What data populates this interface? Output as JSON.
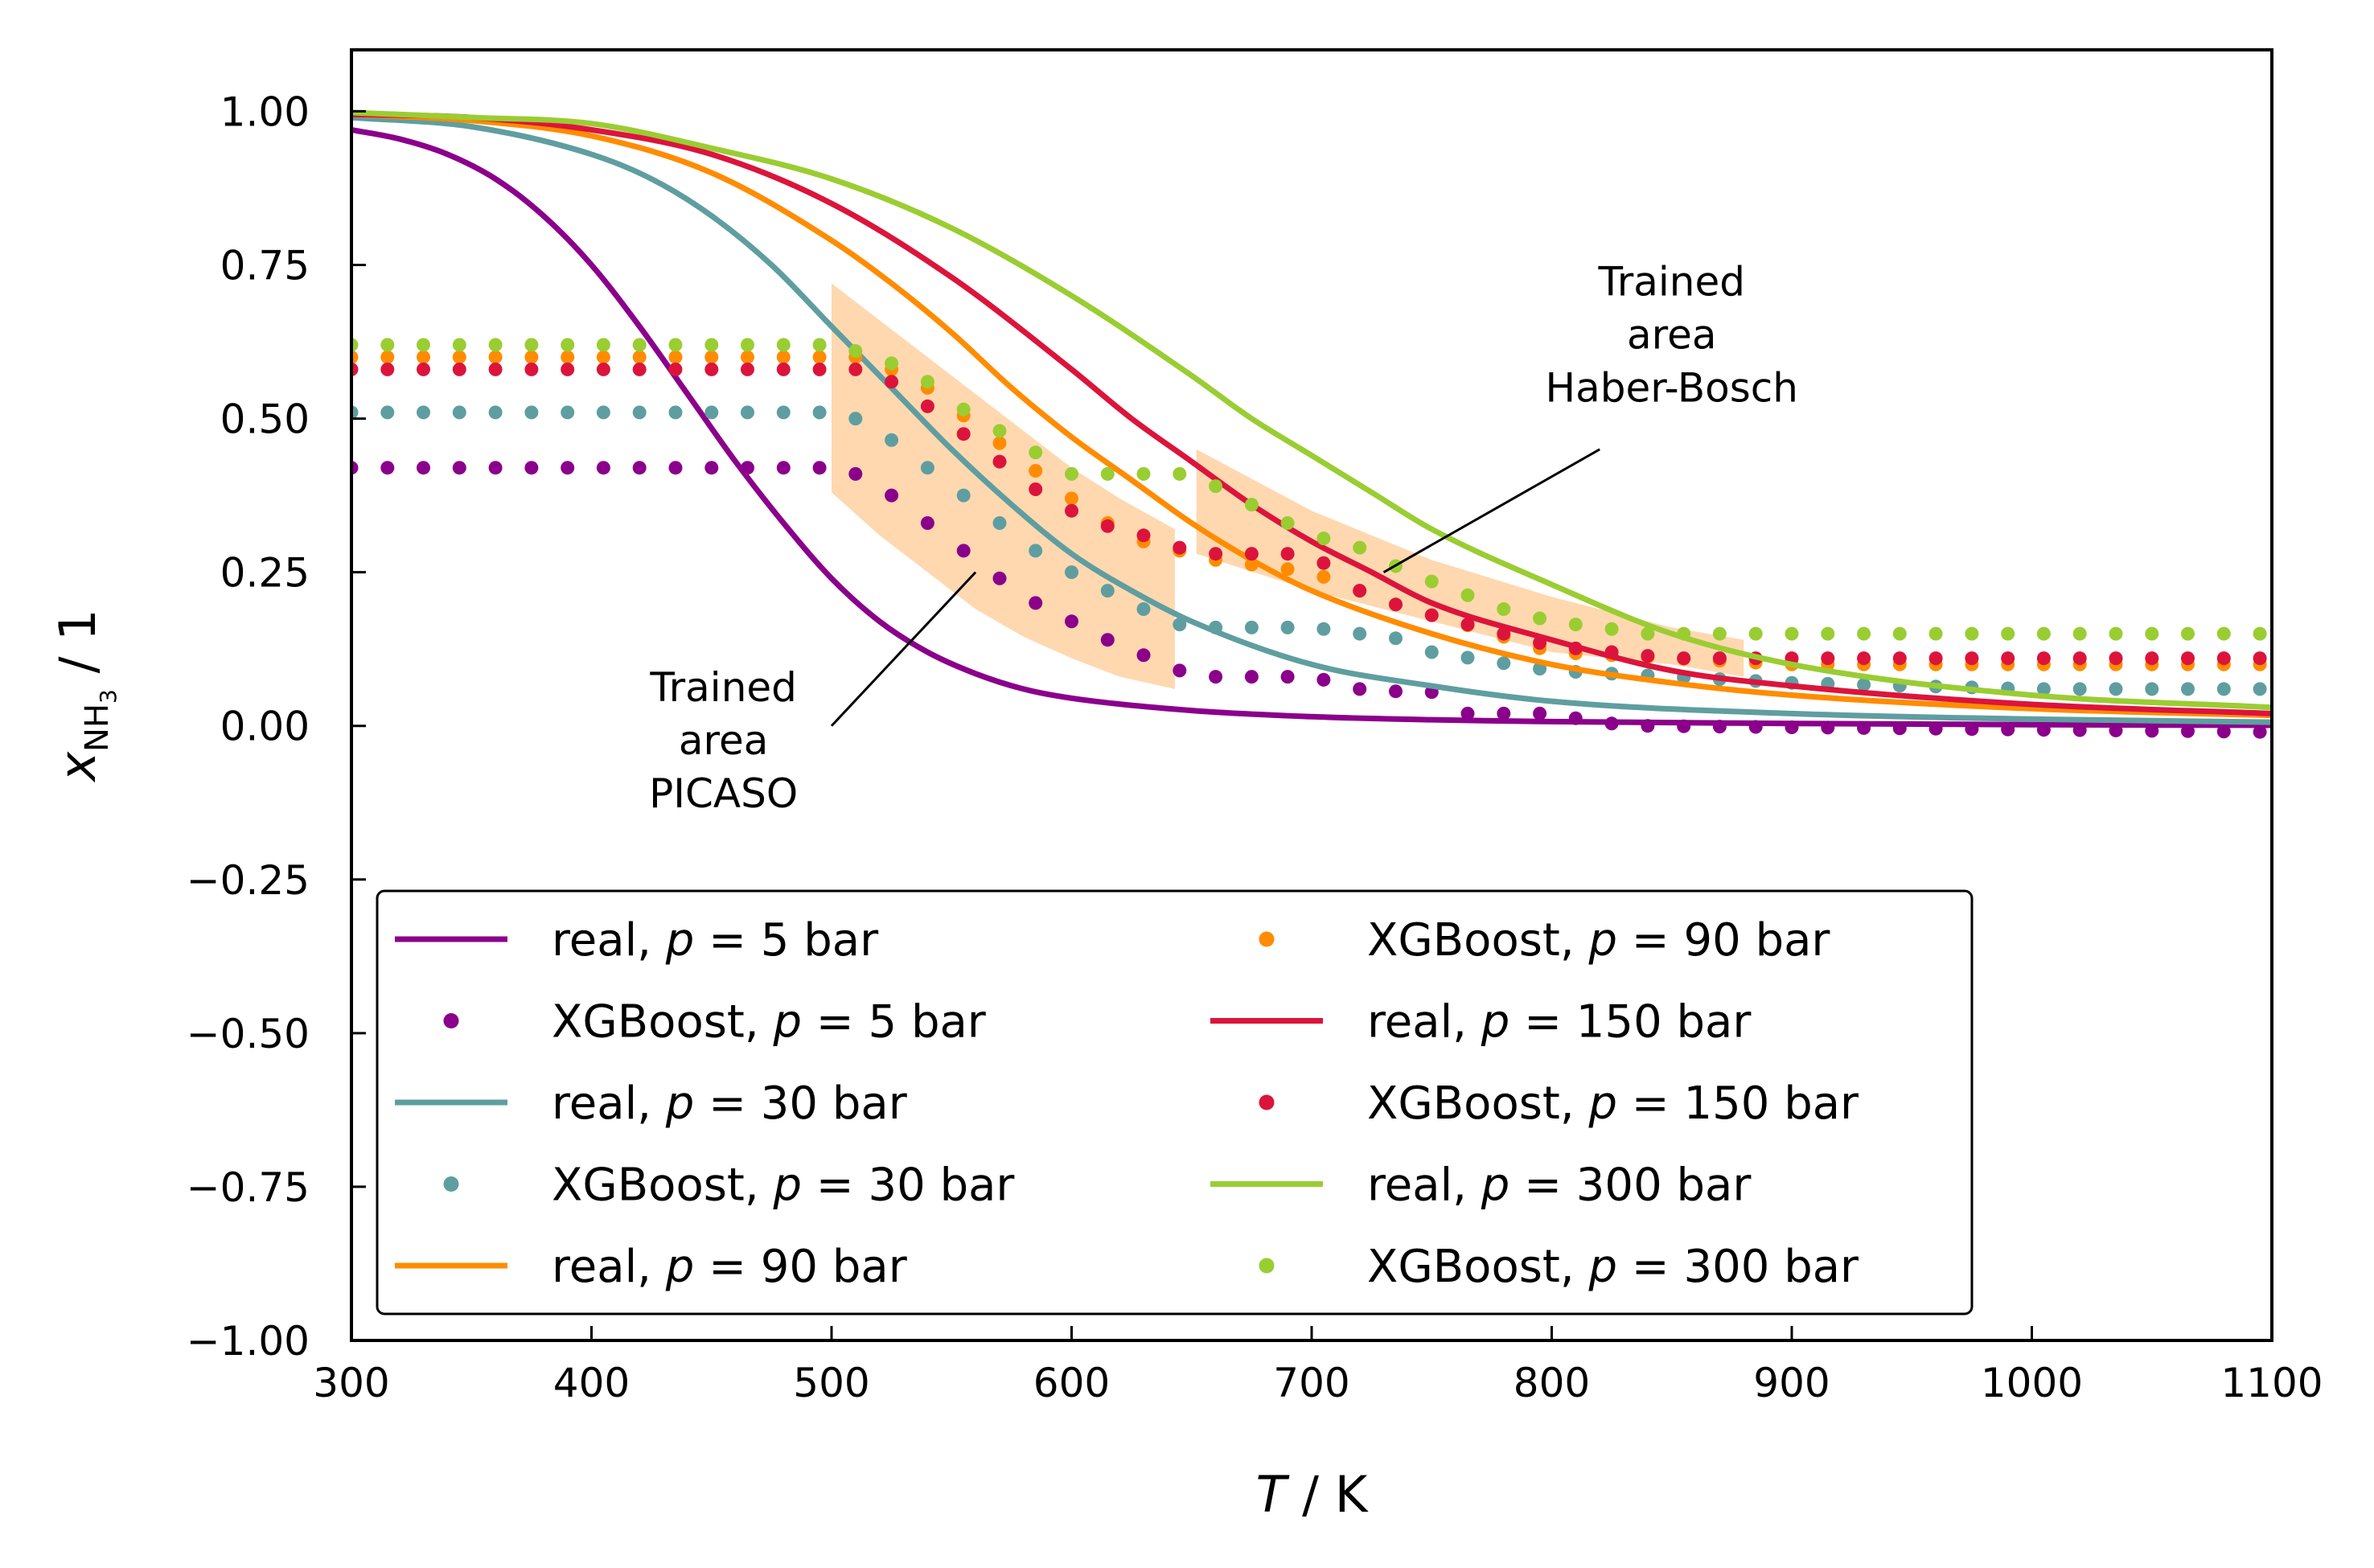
{
  "chart_data": {
    "type": "line",
    "xlabel": {
      "italic": "T",
      "rest": " / K"
    },
    "ylabel": {
      "main": "x",
      "sub": "NH",
      "subsub": "3",
      "rest": " / 1"
    },
    "xlim": [
      300,
      1100
    ],
    "ylim": [
      -1.0,
      1.1
    ],
    "xticks": [
      300,
      400,
      500,
      600,
      700,
      800,
      900,
      1000,
      1100
    ],
    "yticks": [
      -1.0,
      -0.75,
      -0.5,
      -0.25,
      0.0,
      0.25,
      0.5,
      0.75,
      1.0
    ],
    "xtick_labels": [
      "300",
      "400",
      "500",
      "600",
      "700",
      "800",
      "900",
      "1000",
      "1100"
    ],
    "ytick_labels": [
      "−1.00",
      "−0.75",
      "−0.50",
      "−0.25",
      "0.00",
      "0.25",
      "0.50",
      "0.75",
      "1.00"
    ],
    "grid": false,
    "legend_position": "lower-left",
    "legend_ncol": 2,
    "series": [
      {
        "label_prefix": "real, ",
        "label_p": "p",
        "label_suffix": " = 5 bar",
        "kind": "line",
        "color": "#8b008b",
        "x": [
          300,
          320,
          340,
          360,
          380,
          400,
          420,
          440,
          460,
          480,
          500,
          520,
          540,
          560,
          580,
          600,
          650,
          700,
          750,
          800,
          900,
          1000,
          1100
        ],
        "y": [
          0.97,
          0.955,
          0.93,
          0.89,
          0.83,
          0.75,
          0.65,
          0.54,
          0.43,
          0.33,
          0.24,
          0.17,
          0.12,
          0.085,
          0.06,
          0.045,
          0.025,
          0.015,
          0.01,
          0.007,
          0.004,
          0.002,
          0.001
        ]
      },
      {
        "label_prefix": "XGBoost, ",
        "label_p": "p",
        "label_suffix": " = 5 bar",
        "kind": "dots",
        "color": "#8b008b",
        "x": [
          300,
          500,
          510,
          520,
          530,
          540,
          550,
          560,
          570,
          580,
          590,
          600,
          610,
          620,
          630,
          640,
          650,
          700,
          720,
          740,
          750,
          760,
          800,
          820,
          840,
          1100
        ],
        "y": [
          0.42,
          0.42,
          0.41,
          0.39,
          0.36,
          0.33,
          0.3,
          0.27,
          0.24,
          0.21,
          0.19,
          0.17,
          0.15,
          0.13,
          0.115,
          0.1,
          0.08,
          0.08,
          0.06,
          0.055,
          0.055,
          0.02,
          0.02,
          0.005,
          0.0,
          -0.01
        ]
      },
      {
        "label_prefix": "real, ",
        "label_p": "p",
        "label_suffix": " = 30 bar",
        "kind": "line",
        "color": "#5f9ea0",
        "x": [
          300,
          350,
          400,
          425,
          450,
          475,
          500,
          525,
          550,
          575,
          600,
          625,
          650,
          700,
          750,
          800,
          900,
          1000,
          1100
        ],
        "y": [
          0.99,
          0.975,
          0.93,
          0.89,
          0.83,
          0.75,
          0.65,
          0.55,
          0.45,
          0.36,
          0.28,
          0.22,
          0.17,
          0.1,
          0.065,
          0.04,
          0.02,
          0.011,
          0.006
        ]
      },
      {
        "label_prefix": "XGBoost, ",
        "label_p": "p",
        "label_suffix": " = 30 bar",
        "kind": "dots",
        "color": "#5f9ea0",
        "x": [
          300,
          500,
          510,
          520,
          530,
          540,
          550,
          560,
          570,
          580,
          590,
          600,
          610,
          620,
          630,
          640,
          650,
          700,
          740,
          750,
          800,
          850,
          900,
          1000,
          1100
        ],
        "y": [
          0.51,
          0.51,
          0.5,
          0.48,
          0.45,
          0.42,
          0.39,
          0.36,
          0.33,
          0.3,
          0.27,
          0.25,
          0.23,
          0.21,
          0.19,
          0.17,
          0.16,
          0.16,
          0.14,
          0.12,
          0.09,
          0.08,
          0.07,
          0.06,
          0.06
        ]
      },
      {
        "label_prefix": "real, ",
        "label_p": "p",
        "label_suffix": " = 90 bar",
        "kind": "line",
        "color": "#ff8c00",
        "x": [
          300,
          350,
          400,
          450,
          500,
          525,
          550,
          575,
          600,
          625,
          650,
          675,
          700,
          750,
          800,
          850,
          900,
          1000,
          1100
        ],
        "y": [
          0.995,
          0.985,
          0.96,
          0.9,
          0.79,
          0.72,
          0.64,
          0.55,
          0.47,
          0.4,
          0.33,
          0.27,
          0.22,
          0.15,
          0.1,
          0.07,
          0.05,
          0.028,
          0.017
        ]
      },
      {
        "label_prefix": "XGBoost, ",
        "label_p": "p",
        "label_suffix": " = 90 bar",
        "kind": "dots",
        "color": "#ff8c00",
        "x": [
          300,
          500,
          510,
          520,
          530,
          540,
          550,
          560,
          570,
          580,
          590,
          600,
          610,
          620,
          630,
          640,
          650,
          660,
          700,
          720,
          740,
          760,
          800,
          850,
          900,
          1000,
          1100
        ],
        "y": [
          0.6,
          0.6,
          0.6,
          0.59,
          0.57,
          0.55,
          0.52,
          0.49,
          0.46,
          0.43,
          0.4,
          0.37,
          0.34,
          0.32,
          0.3,
          0.29,
          0.28,
          0.27,
          0.25,
          0.22,
          0.19,
          0.17,
          0.12,
          0.11,
          0.1,
          0.1,
          0.1
        ]
      },
      {
        "label_prefix": "real, ",
        "label_p": "p",
        "label_suffix": " = 150 bar",
        "kind": "line",
        "color": "#dc143c",
        "x": [
          300,
          350,
          400,
          450,
          500,
          550,
          600,
          625,
          650,
          675,
          700,
          725,
          750,
          800,
          850,
          900,
          1000,
          1100
        ],
        "y": [
          0.995,
          0.99,
          0.97,
          0.93,
          0.85,
          0.73,
          0.58,
          0.5,
          0.43,
          0.36,
          0.3,
          0.25,
          0.2,
          0.14,
          0.09,
          0.065,
          0.035,
          0.02
        ]
      },
      {
        "label_prefix": "XGBoost, ",
        "label_p": "p",
        "label_suffix": " = 150 bar",
        "kind": "dots",
        "color": "#dc143c",
        "x": [
          300,
          500,
          510,
          520,
          530,
          540,
          550,
          560,
          570,
          580,
          590,
          600,
          610,
          620,
          630,
          640,
          650,
          700,
          720,
          740,
          760,
          780,
          800,
          850,
          900,
          1000,
          1100
        ],
        "y": [
          0.58,
          0.58,
          0.58,
          0.57,
          0.55,
          0.52,
          0.49,
          0.46,
          0.43,
          0.4,
          0.37,
          0.35,
          0.33,
          0.32,
          0.31,
          0.3,
          0.28,
          0.28,
          0.22,
          0.19,
          0.17,
          0.15,
          0.13,
          0.11,
          0.11,
          0.11,
          0.11
        ]
      },
      {
        "label_prefix": "real, ",
        "label_p": "p",
        "label_suffix": " = 300 bar",
        "kind": "line",
        "color": "#9acd32",
        "x": [
          300,
          350,
          400,
          450,
          500,
          550,
          600,
          650,
          675,
          700,
          725,
          750,
          800,
          850,
          900,
          1000,
          1100
        ],
        "y": [
          0.998,
          0.99,
          0.98,
          0.94,
          0.89,
          0.81,
          0.7,
          0.57,
          0.5,
          0.44,
          0.38,
          0.32,
          0.23,
          0.15,
          0.1,
          0.05,
          0.03
        ]
      },
      {
        "label_prefix": "XGBoost, ",
        "label_p": "p",
        "label_suffix": " = 300 bar",
        "kind": "dots",
        "color": "#9acd32",
        "x": [
          300,
          500,
          510,
          520,
          530,
          540,
          550,
          560,
          570,
          580,
          590,
          600,
          610,
          620,
          630,
          640,
          650,
          700,
          720,
          740,
          760,
          780,
          800,
          820,
          840,
          1100
        ],
        "y": [
          0.62,
          0.62,
          0.61,
          0.6,
          0.58,
          0.56,
          0.53,
          0.5,
          0.48,
          0.46,
          0.43,
          0.41,
          0.41,
          0.41,
          0.41,
          0.41,
          0.41,
          0.31,
          0.29,
          0.25,
          0.22,
          0.19,
          0.17,
          0.16,
          0.15,
          0.15
        ]
      }
    ],
    "shaded_regions": [
      {
        "name": "picaso",
        "color": "#ffd8b0",
        "upper": [
          [
            500,
            0.72
          ],
          [
            520,
            0.66
          ],
          [
            540,
            0.6
          ],
          [
            560,
            0.54
          ],
          [
            580,
            0.48
          ],
          [
            600,
            0.42
          ],
          [
            620,
            0.37
          ],
          [
            643,
            0.32
          ]
        ],
        "lower": [
          [
            500,
            0.38
          ],
          [
            520,
            0.31
          ],
          [
            540,
            0.25
          ],
          [
            560,
            0.19
          ],
          [
            580,
            0.145
          ],
          [
            600,
            0.11
          ],
          [
            620,
            0.08
          ],
          [
            643,
            0.06
          ]
        ]
      },
      {
        "name": "haber-bosch",
        "color": "#ffd8b0",
        "upper": [
          [
            652,
            0.45
          ],
          [
            700,
            0.35
          ],
          [
            750,
            0.27
          ],
          [
            800,
            0.21
          ],
          [
            850,
            0.16
          ],
          [
            880,
            0.14
          ]
        ],
        "lower": [
          [
            652,
            0.28
          ],
          [
            700,
            0.22
          ],
          [
            750,
            0.17
          ],
          [
            800,
            0.12
          ],
          [
            850,
            0.1
          ],
          [
            880,
            0.08
          ]
        ]
      }
    ],
    "annotations": [
      {
        "name": "picaso",
        "lines": [
          "Trained",
          "area",
          "PICASO"
        ],
        "text_x": 455,
        "text_y": 0.04,
        "arrow_from": [
          500,
          0.0
        ],
        "arrow_to": [
          560,
          0.25
        ]
      },
      {
        "name": "haber-bosch",
        "lines": [
          "Trained",
          "area",
          "Haber-Bosch"
        ],
        "text_x": 850,
        "text_y": 0.7,
        "arrow_from": [
          820,
          0.45
        ],
        "arrow_to": [
          730,
          0.25
        ]
      }
    ]
  }
}
